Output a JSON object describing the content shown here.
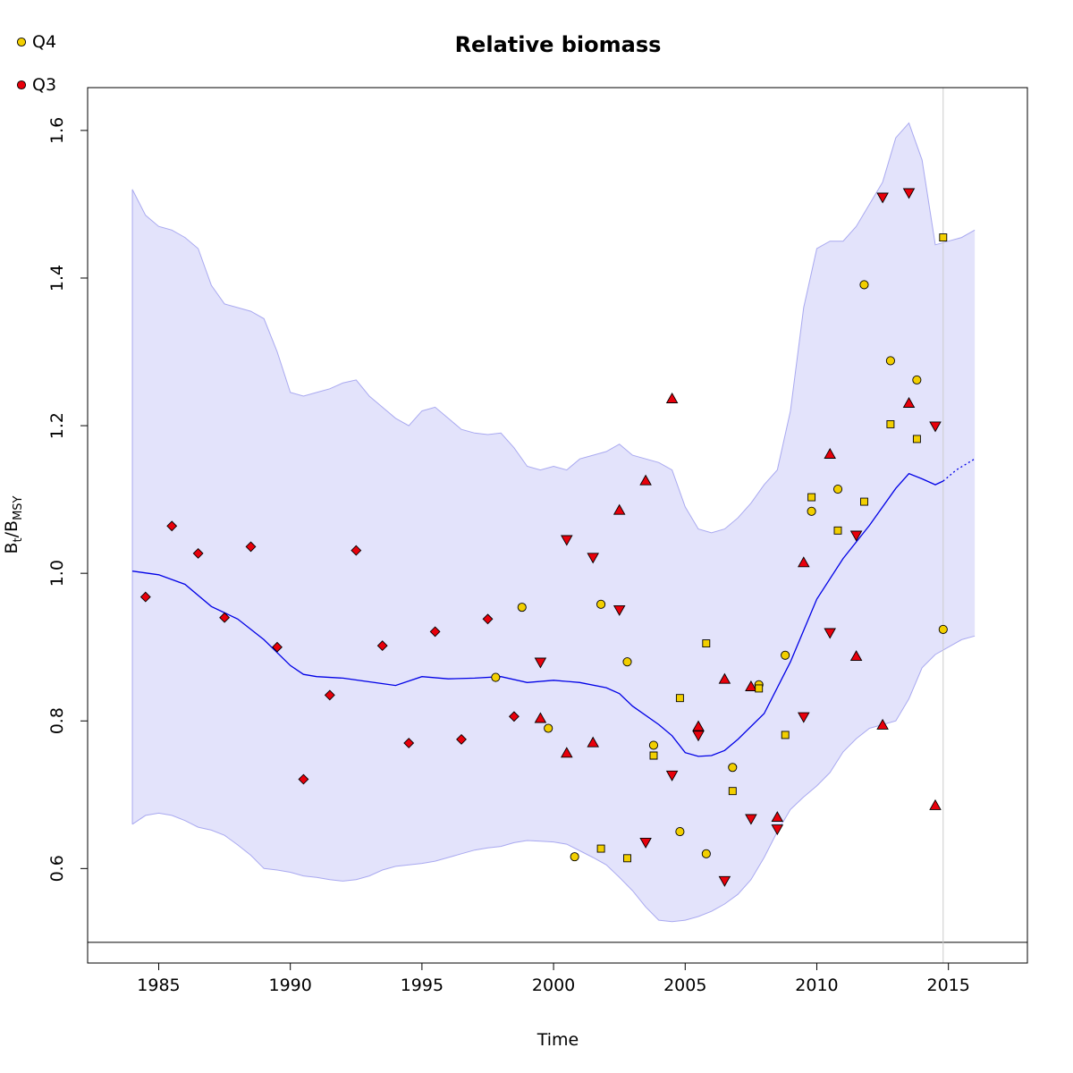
{
  "chart_data": {
    "type": "scatter",
    "title": "Relative biomass",
    "xlabel": "Time",
    "ylabel": {
      "base1": "B",
      "sub1": "t",
      "slash": "/",
      "base2": "B",
      "sub2": "MSY"
    },
    "xlim": [
      1982.3,
      2018.0
    ],
    "ylim": [
      0.472,
      1.658
    ],
    "xticks": [
      1985,
      1990,
      1995,
      2000,
      2005,
      2010,
      2015
    ],
    "yticks": [
      0.6,
      0.8,
      1.0,
      1.2,
      1.4,
      1.6
    ],
    "ytick_labels": [
      "0.6",
      "0.8",
      "1.0",
      "1.2",
      "1.4",
      "1.6"
    ],
    "reference_hline": 0.5,
    "reference_vline": 2014.8,
    "colors": {
      "band_fill": "#e3e3fb",
      "band_stroke": "#a9a9f0",
      "line": "#0000e6",
      "reference": "#000000",
      "vline": "#cccccc",
      "Q3": "#e8000b",
      "Q4": "#f2cf00"
    },
    "legend": {
      "placement": "top-left",
      "entries": [
        {
          "label": "Q4",
          "color": "#f2cf00",
          "symbol": "circle"
        },
        {
          "label": "Q3",
          "color": "#e8000b",
          "symbol": "circle"
        }
      ]
    },
    "biomass_line": {
      "x": [
        1984.0,
        1985.0,
        1986.0,
        1987.0,
        1988.0,
        1989.0,
        1990.0,
        1990.5,
        1991.0,
        1992.0,
        1993.0,
        1994.0,
        1995.0,
        1996.0,
        1997.0,
        1998.0,
        1999.0,
        2000.0,
        2001.0,
        2002.0,
        2002.5,
        2003.0,
        2004.0,
        2004.5,
        2005.0,
        2005.5,
        2006.0,
        2006.5,
        2007.0,
        2008.0,
        2009.0,
        2010.0,
        2011.0,
        2012.0,
        2013.0,
        2013.5,
        2014.0,
        2014.5,
        2014.8
      ],
      "y": [
        1.003,
        0.998,
        0.985,
        0.955,
        0.938,
        0.91,
        0.875,
        0.863,
        0.86,
        0.858,
        0.853,
        0.848,
        0.86,
        0.857,
        0.858,
        0.86,
        0.852,
        0.855,
        0.852,
        0.845,
        0.837,
        0.82,
        0.795,
        0.78,
        0.757,
        0.752,
        0.753,
        0.76,
        0.775,
        0.81,
        0.88,
        0.965,
        1.02,
        1.065,
        1.115,
        1.135,
        1.128,
        1.12,
        1.125
      ]
    },
    "projection_line": {
      "x": [
        2014.8,
        2015.3,
        2016.0
      ],
      "y": [
        1.125,
        1.14,
        1.155
      ]
    },
    "band_upper": {
      "x": [
        1984.0,
        1984.5,
        1985.0,
        1985.5,
        1986.0,
        1986.5,
        1987.0,
        1987.5,
        1988.0,
        1988.5,
        1989.0,
        1989.5,
        1990.0,
        1990.5,
        1991.0,
        1991.5,
        1992.0,
        1992.5,
        1993.0,
        1993.5,
        1994.0,
        1994.5,
        1995.0,
        1995.5,
        1996.0,
        1996.5,
        1997.0,
        1997.5,
        1998.0,
        1998.5,
        1999.0,
        1999.5,
        2000.0,
        2000.5,
        2001.0,
        2001.5,
        2002.0,
        2002.5,
        2003.0,
        2003.5,
        2004.0,
        2004.5,
        2005.0,
        2005.5,
        2006.0,
        2006.5,
        2007.0,
        2007.5,
        2008.0,
        2008.5,
        2009.0,
        2009.5,
        2010.0,
        2010.5,
        2011.0,
        2011.5,
        2012.0,
        2012.5,
        2013.0,
        2013.5,
        2014.0,
        2014.5,
        2015.0,
        2015.5,
        2016.0
      ],
      "y": [
        1.52,
        1.485,
        1.47,
        1.465,
        1.455,
        1.44,
        1.39,
        1.365,
        1.36,
        1.355,
        1.345,
        1.3,
        1.245,
        1.24,
        1.245,
        1.25,
        1.258,
        1.262,
        1.24,
        1.225,
        1.21,
        1.2,
        1.22,
        1.225,
        1.21,
        1.195,
        1.19,
        1.188,
        1.19,
        1.17,
        1.145,
        1.14,
        1.145,
        1.14,
        1.155,
        1.16,
        1.165,
        1.175,
        1.16,
        1.155,
        1.15,
        1.14,
        1.09,
        1.06,
        1.055,
        1.06,
        1.075,
        1.095,
        1.12,
        1.14,
        1.22,
        1.36,
        1.44,
        1.45,
        1.45,
        1.47,
        1.5,
        1.53,
        1.59,
        1.61,
        1.56,
        1.445,
        1.45,
        1.455,
        1.465
      ]
    },
    "band_lower": {
      "x": [
        1984.0,
        1984.5,
        1985.0,
        1985.5,
        1986.0,
        1986.5,
        1987.0,
        1987.5,
        1988.0,
        1988.5,
        1989.0,
        1989.5,
        1990.0,
        1990.5,
        1991.0,
        1991.5,
        1992.0,
        1992.5,
        1993.0,
        1993.5,
        1994.0,
        1994.5,
        1995.0,
        1995.5,
        1996.0,
        1996.5,
        1997.0,
        1997.5,
        1998.0,
        1998.5,
        1999.0,
        1999.5,
        2000.0,
        2000.5,
        2001.0,
        2001.5,
        2002.0,
        2002.5,
        2003.0,
        2003.5,
        2004.0,
        2004.5,
        2005.0,
        2005.5,
        2006.0,
        2006.5,
        2007.0,
        2007.5,
        2008.0,
        2008.5,
        2009.0,
        2009.5,
        2010.0,
        2010.5,
        2011.0,
        2011.5,
        2012.0,
        2012.5,
        2013.0,
        2013.5,
        2014.0,
        2014.5,
        2015.0,
        2015.5,
        2016.0
      ],
      "y": [
        0.66,
        0.672,
        0.675,
        0.672,
        0.665,
        0.656,
        0.652,
        0.645,
        0.632,
        0.618,
        0.6,
        0.598,
        0.595,
        0.59,
        0.588,
        0.585,
        0.583,
        0.585,
        0.59,
        0.598,
        0.603,
        0.605,
        0.607,
        0.61,
        0.615,
        0.62,
        0.625,
        0.628,
        0.63,
        0.635,
        0.638,
        0.637,
        0.636,
        0.633,
        0.624,
        0.615,
        0.605,
        0.588,
        0.57,
        0.548,
        0.53,
        0.528,
        0.53,
        0.535,
        0.542,
        0.552,
        0.565,
        0.585,
        0.615,
        0.65,
        0.68,
        0.697,
        0.712,
        0.73,
        0.758,
        0.776,
        0.79,
        0.795,
        0.8,
        0.83,
        0.872,
        0.89,
        0.9,
        0.91,
        0.915
      ]
    },
    "series": [
      {
        "name": "Q3",
        "marker": "diamond",
        "color": "#e8000b",
        "points": [
          [
            1984.5,
            0.968
          ],
          [
            1985.5,
            1.064
          ],
          [
            1986.5,
            1.027
          ],
          [
            1987.5,
            0.94
          ],
          [
            1988.5,
            1.036
          ],
          [
            1989.5,
            0.9
          ],
          [
            1990.5,
            0.721
          ],
          [
            1991.5,
            0.835
          ],
          [
            1992.5,
            1.031
          ],
          [
            1993.5,
            0.902
          ],
          [
            1994.5,
            0.77
          ],
          [
            1995.5,
            0.921
          ],
          [
            1996.5,
            0.775
          ],
          [
            1997.5,
            0.938
          ],
          [
            1998.5,
            0.806
          ]
        ]
      },
      {
        "name": "",
        "marker": "triangle-up",
        "color": "#e8000b",
        "points": [
          [
            1999.5,
            0.803
          ],
          [
            2000.5,
            0.756
          ],
          [
            2001.5,
            0.77
          ],
          [
            2002.5,
            1.085
          ],
          [
            2003.5,
            1.125
          ],
          [
            2004.5,
            1.236
          ],
          [
            2005.5,
            0.792
          ],
          [
            2006.5,
            0.856
          ],
          [
            2007.5,
            0.846
          ],
          [
            2008.5,
            0.669
          ],
          [
            2009.5,
            1.014
          ],
          [
            2010.5,
            1.161
          ],
          [
            2011.5,
            0.887
          ],
          [
            2012.5,
            0.794
          ],
          [
            2013.5,
            1.23
          ],
          [
            2014.5,
            0.685
          ]
        ]
      },
      {
        "name": "",
        "marker": "triangle-down",
        "color": "#e8000b",
        "points": [
          [
            1999.5,
            0.88
          ],
          [
            2000.5,
            1.046
          ],
          [
            2001.5,
            1.022
          ],
          [
            2002.5,
            0.951
          ],
          [
            2003.5,
            0.636
          ],
          [
            2004.5,
            0.727
          ],
          [
            2005.5,
            0.781
          ],
          [
            2006.5,
            0.584
          ],
          [
            2007.5,
            0.668
          ],
          [
            2008.5,
            0.654
          ],
          [
            2009.5,
            0.806
          ],
          [
            2010.5,
            0.92
          ],
          [
            2011.5,
            1.052
          ],
          [
            2012.5,
            1.51
          ],
          [
            2013.5,
            1.516
          ],
          [
            2014.5,
            1.2
          ]
        ]
      },
      {
        "name": "Q4",
        "marker": "circle",
        "color": "#f2cf00",
        "points": [
          [
            1997.8,
            0.859
          ],
          [
            1998.8,
            0.954
          ],
          [
            1999.8,
            0.79
          ],
          [
            2000.8,
            0.616
          ],
          [
            2001.8,
            0.958
          ],
          [
            2002.8,
            0.88
          ],
          [
            2003.8,
            0.767
          ],
          [
            2004.8,
            0.65
          ],
          [
            2005.8,
            0.62
          ],
          [
            2006.8,
            0.737
          ],
          [
            2007.8,
            0.849
          ],
          [
            2008.8,
            0.889
          ],
          [
            2009.8,
            1.084
          ],
          [
            2010.8,
            1.114
          ],
          [
            2011.8,
            1.391
          ],
          [
            2012.8,
            1.288
          ],
          [
            2013.8,
            1.262
          ],
          [
            2014.8,
            0.924
          ]
        ]
      },
      {
        "name": "",
        "marker": "square",
        "color": "#f2cf00",
        "points": [
          [
            2001.8,
            0.627
          ],
          [
            2002.8,
            0.614
          ],
          [
            2003.8,
            0.753
          ],
          [
            2004.8,
            0.831
          ],
          [
            2005.8,
            0.905
          ],
          [
            2006.8,
            0.705
          ],
          [
            2007.8,
            0.844
          ],
          [
            2008.8,
            0.781
          ],
          [
            2009.8,
            1.103
          ],
          [
            2010.8,
            1.058
          ],
          [
            2011.8,
            1.097
          ],
          [
            2012.8,
            1.202
          ],
          [
            2013.8,
            1.182
          ],
          [
            2014.8,
            1.455
          ]
        ]
      }
    ]
  }
}
